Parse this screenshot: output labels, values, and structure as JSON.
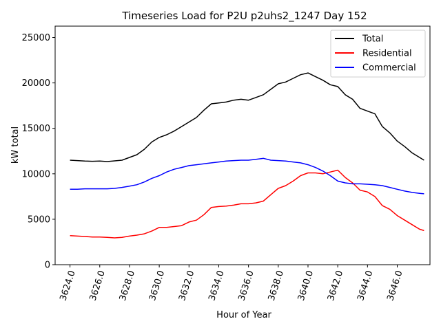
{
  "chart_data": {
    "type": "line",
    "title": "Timeseries Load for P2U p2uhs2_1247  Day 152",
    "xlabel": "Hour of Year",
    "ylabel": "kW total",
    "xlim": [
      3623.0,
      3648.2
    ],
    "ylim": [
      0,
      26250
    ],
    "xticks": [
      3624,
      3626,
      3628,
      3630,
      3632,
      3634,
      3636,
      3638,
      3640,
      3642,
      3644,
      3646
    ],
    "xtick_labels": [
      "3624.0",
      "3626.0",
      "3628.0",
      "3630.0",
      "3632.0",
      "3634.0",
      "3636.0",
      "3638.0",
      "3640.0",
      "3642.0",
      "3644.0",
      "3646.0"
    ],
    "yticks": [
      0,
      5000,
      10000,
      15000,
      20000,
      25000
    ],
    "ytick_labels": [
      "0",
      "5000",
      "10000",
      "15000",
      "20000",
      "25000"
    ],
    "legend_position": "top-right",
    "x": [
      3624.0,
      3624.5,
      3625.0,
      3625.5,
      3626.0,
      3626.5,
      3627.0,
      3627.5,
      3628.0,
      3628.5,
      3629.0,
      3629.5,
      3630.0,
      3630.5,
      3631.0,
      3631.5,
      3632.0,
      3632.5,
      3633.0,
      3633.5,
      3634.0,
      3634.5,
      3635.0,
      3635.5,
      3636.0,
      3636.5,
      3637.0,
      3637.5,
      3638.0,
      3638.5,
      3639.0,
      3639.5,
      3640.0,
      3640.5,
      3641.0,
      3641.5,
      3642.0,
      3642.5,
      3643.0,
      3643.5,
      3644.0,
      3644.5,
      3645.0,
      3645.5,
      3646.0,
      3646.5,
      3647.0,
      3647.5,
      3647.8
    ],
    "series": [
      {
        "name": "Total",
        "color": "#000000",
        "values": [
          11500,
          11450,
          11400,
          11380,
          11400,
          11350,
          11420,
          11500,
          11800,
          12100,
          12700,
          13500,
          14000,
          14300,
          14700,
          15200,
          15700,
          16200,
          17000,
          17700,
          17800,
          17900,
          18100,
          18200,
          18100,
          18400,
          18700,
          19300,
          19900,
          20100,
          20500,
          20900,
          21100,
          20700,
          20300,
          19800,
          19600,
          18700,
          18200,
          17200,
          16900,
          16600,
          15200,
          14500,
          13600,
          13000,
          12300,
          11800,
          11500
        ]
      },
      {
        "name": "Residential",
        "color": "#ff0000",
        "values": [
          3200,
          3150,
          3100,
          3050,
          3050,
          3000,
          2950,
          3000,
          3150,
          3250,
          3400,
          3700,
          4100,
          4100,
          4200,
          4300,
          4700,
          4900,
          5500,
          6300,
          6400,
          6450,
          6550,
          6700,
          6700,
          6800,
          7000,
          7700,
          8400,
          8700,
          9200,
          9800,
          10100,
          10100,
          10000,
          10200,
          10400,
          9600,
          9000,
          8200,
          8000,
          7500,
          6500,
          6100,
          5400,
          4900,
          4400,
          3900,
          3750
        ]
      },
      {
        "name": "Commercial",
        "color": "#0000ff",
        "values": [
          8300,
          8300,
          8350,
          8350,
          8350,
          8350,
          8400,
          8500,
          8650,
          8800,
          9100,
          9500,
          9800,
          10200,
          10500,
          10700,
          10900,
          11000,
          11100,
          11200,
          11300,
          11400,
          11450,
          11500,
          11500,
          11600,
          11700,
          11500,
          11450,
          11400,
          11300,
          11200,
          11000,
          10700,
          10300,
          9800,
          9200,
          9000,
          8900,
          8900,
          8850,
          8800,
          8700,
          8500,
          8300,
          8100,
          7950,
          7850,
          7800
        ]
      }
    ]
  }
}
